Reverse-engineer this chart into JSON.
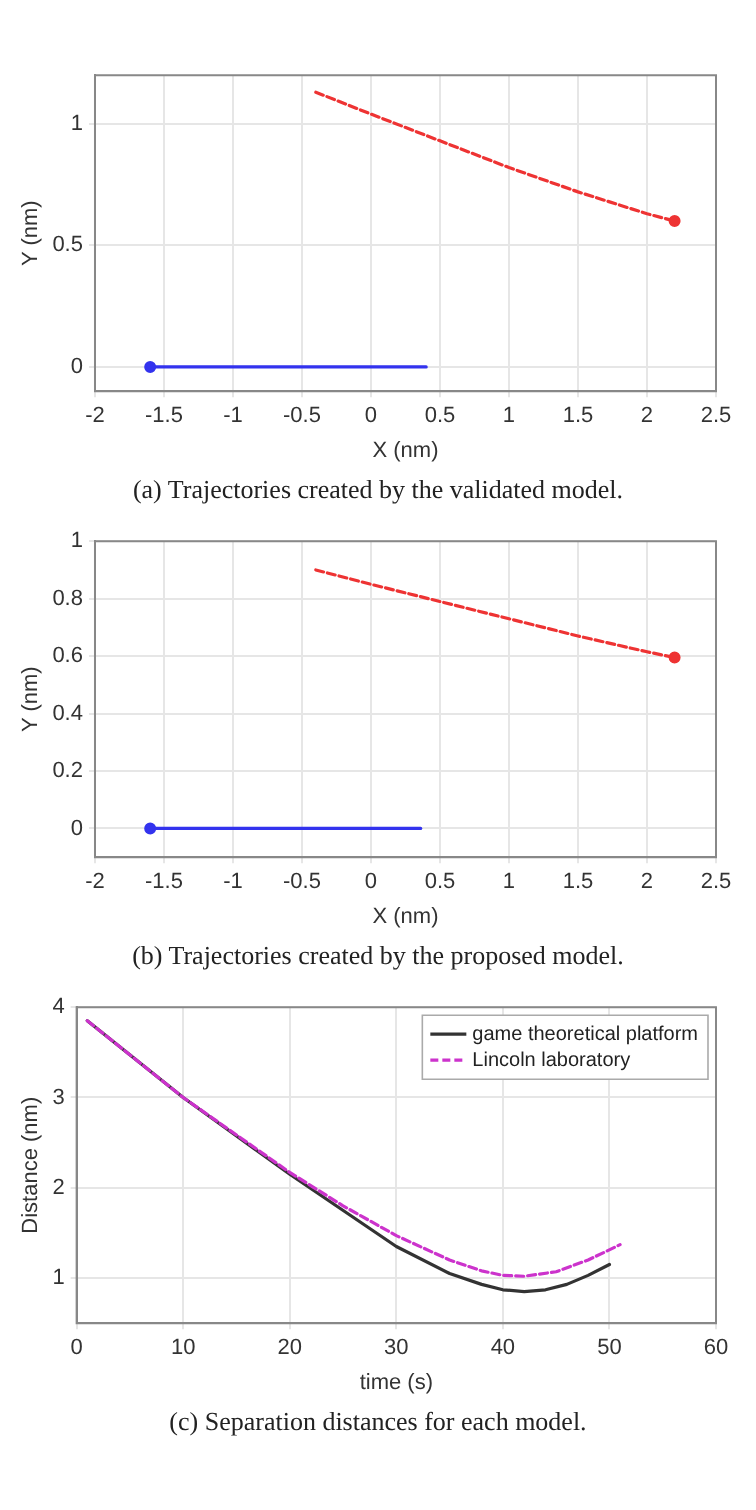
{
  "chart_data": [
    {
      "type": "line",
      "xlabel": "X (nm)",
      "ylabel": "Y (nm)",
      "annotations": [
        "(a) Trajectories created by the validated model."
      ],
      "xlim": [
        -2,
        2.5
      ],
      "xticks": [
        -2,
        -1.5,
        -1,
        -0.5,
        0,
        0.5,
        1,
        1.5,
        2,
        2.5
      ],
      "ylim": [
        -0.1,
        1.2
      ],
      "yticks": [
        0,
        0.5,
        1
      ],
      "grid": true,
      "legend": false,
      "series": [
        {
          "color": "#ee3333",
          "line_style": "dashed",
          "marker": "none",
          "x": [
            -0.4,
            0,
            0.5,
            1,
            1.5,
            2,
            2.2
          ],
          "values": [
            1.13,
            1.04,
            0.93,
            0.82,
            0.72,
            0.63,
            0.6
          ]
        },
        {
          "type": "scatter",
          "color": "#ee3333",
          "marker": "circle",
          "x": [
            2.2
          ],
          "values": [
            0.6
          ]
        },
        {
          "color": "#3333ee",
          "line_style": "solid",
          "marker": "none",
          "x": [
            -1.6,
            0.4
          ],
          "values": [
            0,
            0
          ]
        },
        {
          "type": "scatter",
          "color": "#3333ee",
          "marker": "circle",
          "x": [
            -1.6
          ],
          "values": [
            0
          ]
        }
      ]
    },
    {
      "type": "line",
      "xlabel": "X (nm)",
      "ylabel": "Y (nm)",
      "annotations": [
        "(b) Trajectories created by the proposed model."
      ],
      "xlim": [
        -2,
        2.5
      ],
      "xticks": [
        -2,
        -1.5,
        -1,
        -0.5,
        0,
        0.5,
        1,
        1.5,
        2,
        2.5
      ],
      "ylim": [
        -0.1,
        1
      ],
      "yticks": [
        0,
        0.2,
        0.4,
        0.6,
        0.8,
        1
      ],
      "grid": true,
      "legend": false,
      "series": [
        {
          "color": "#ee3333",
          "line_style": "dashed",
          "marker": "none",
          "x": [
            -0.4,
            0,
            0.5,
            1,
            1.5,
            2,
            2.2
          ],
          "values": [
            0.9,
            0.85,
            0.79,
            0.73,
            0.67,
            0.615,
            0.595
          ]
        },
        {
          "type": "scatter",
          "color": "#ee3333",
          "marker": "circle",
          "x": [
            2.2
          ],
          "values": [
            0.595
          ]
        },
        {
          "color": "#3333ee",
          "line_style": "solid",
          "marker": "none",
          "x": [
            -1.6,
            0.36
          ],
          "values": [
            0,
            0
          ]
        },
        {
          "type": "scatter",
          "color": "#3333ee",
          "marker": "circle",
          "x": [
            -1.6
          ],
          "values": [
            0
          ]
        }
      ]
    },
    {
      "type": "line",
      "xlabel": "time (s)",
      "ylabel": "Distance (nm)",
      "annotations": [
        "(c) Separation distances for each model."
      ],
      "xlim": [
        0,
        60
      ],
      "xticks": [
        0,
        10,
        20,
        30,
        40,
        50,
        60
      ],
      "ylim": [
        0.5,
        4
      ],
      "yticks": [
        1,
        2,
        3,
        4
      ],
      "grid": true,
      "legend": "top right",
      "series": [
        {
          "name": "game theoretical platform",
          "color": "#333333",
          "line_style": "solid",
          "marker": "none",
          "x": [
            1,
            10,
            20,
            30,
            35,
            38,
            40,
            42,
            44,
            46,
            48,
            50
          ],
          "values": [
            3.85,
            3.0,
            2.15,
            1.35,
            1.05,
            0.93,
            0.87,
            0.85,
            0.87,
            0.93,
            1.03,
            1.15
          ]
        },
        {
          "name": "Lincoln laboratory",
          "color": "#cc33cc",
          "line_style": "dashed",
          "marker": "none",
          "x": [
            1,
            10,
            20,
            25,
            30,
            35,
            38,
            40,
            42,
            45,
            48,
            51
          ],
          "values": [
            3.85,
            3.0,
            2.17,
            1.8,
            1.47,
            1.2,
            1.08,
            1.03,
            1.02,
            1.07,
            1.2,
            1.37
          ]
        }
      ]
    }
  ]
}
